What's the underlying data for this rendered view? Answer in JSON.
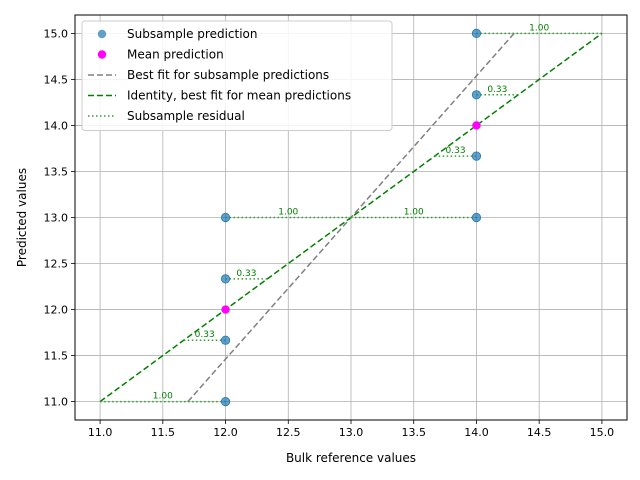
{
  "chart_data": {
    "type": "scatter",
    "xlabel": "Bulk reference values",
    "ylabel": "Predicted values",
    "xlim": [
      10.8,
      15.2
    ],
    "ylim": [
      10.8,
      15.2
    ],
    "xticks": [
      "11.0",
      "11.5",
      "12.0",
      "12.5",
      "13.0",
      "13.5",
      "14.0",
      "14.5",
      "15.0"
    ],
    "yticks": [
      "11.0",
      "11.5",
      "12.0",
      "12.5",
      "13.0",
      "13.5",
      "14.0",
      "14.5",
      "15.0"
    ],
    "grid": true,
    "legend_position": "top-left",
    "legend": [
      {
        "label": "Subsample prediction",
        "kind": "point",
        "color": "#1f77b4"
      },
      {
        "label": "Mean prediction",
        "kind": "point",
        "color": "#ff00ff"
      },
      {
        "label": "Best fit for subsample predictions",
        "kind": "dashed",
        "color": "#808080"
      },
      {
        "label": "Identity, best fit for mean predictions",
        "kind": "dashed",
        "color": "#008000"
      },
      {
        "label": "Subsample residual",
        "kind": "dotted",
        "color": "#2ca02c"
      }
    ],
    "subsample_points": [
      {
        "x": 12,
        "y": 11.0
      },
      {
        "x": 12,
        "y": 11.667
      },
      {
        "x": 12,
        "y": 12.333
      },
      {
        "x": 12,
        "y": 13.0
      },
      {
        "x": 14,
        "y": 13.0
      },
      {
        "x": 14,
        "y": 13.667
      },
      {
        "x": 14,
        "y": 14.333
      },
      {
        "x": 14,
        "y": 15.0
      }
    ],
    "mean_points": [
      {
        "x": 12,
        "y": 12.0
      },
      {
        "x": 14,
        "y": 14.0
      }
    ],
    "best_fit_line": {
      "x": [
        11.7,
        14.3
      ],
      "y": [
        11.0,
        15.0
      ]
    },
    "identity_line": {
      "x": [
        11.0,
        15.0
      ],
      "y": [
        11.0,
        15.0
      ]
    },
    "residuals": [
      {
        "x_from": 11.0,
        "x_to": 12.0,
        "y": 11.0,
        "label": "1.00"
      },
      {
        "x_from": 11.667,
        "x_to": 12.0,
        "y": 11.667,
        "label": "0.33"
      },
      {
        "x_from": 12.0,
        "x_to": 12.333,
        "y": 12.333,
        "label": "0.33"
      },
      {
        "x_from": 12.0,
        "x_to": 13.0,
        "y": 13.0,
        "label": "1.00"
      },
      {
        "x_from": 13.0,
        "x_to": 14.0,
        "y": 13.0,
        "label": "1.00"
      },
      {
        "x_from": 13.667,
        "x_to": 14.0,
        "y": 13.667,
        "label": "0.33"
      },
      {
        "x_from": 14.0,
        "x_to": 14.333,
        "y": 14.333,
        "label": "0.33"
      },
      {
        "x_from": 14.0,
        "x_to": 15.0,
        "y": 15.0,
        "label": "1.00"
      }
    ]
  }
}
